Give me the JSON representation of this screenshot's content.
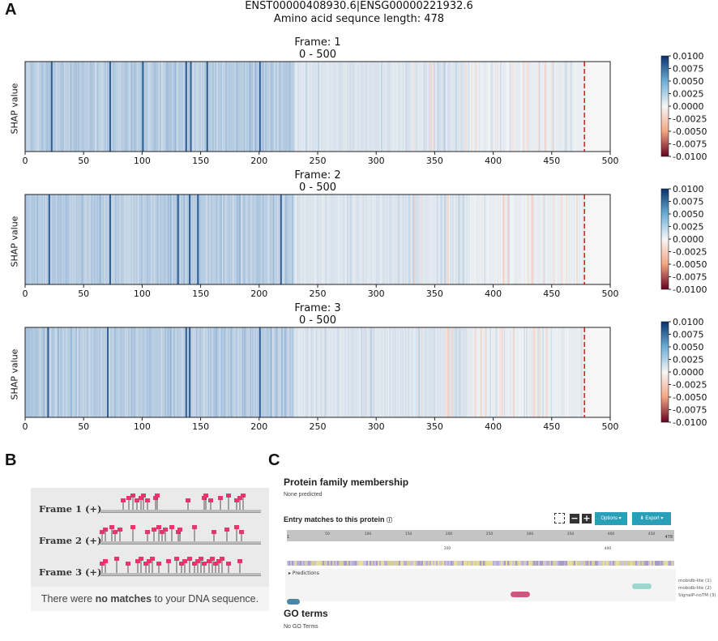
{
  "panel_labels": {
    "a": "A",
    "b": "B",
    "c": "C"
  },
  "header": {
    "line1": "ENST00000408930.6|ENSG00000221932.6",
    "line2": "Amino acid sequnce length: 478"
  },
  "chart_data": [
    {
      "type": "heatmap",
      "title": "Frame: 1",
      "subtitle": "0 - 500",
      "ylabel": "SHAP value",
      "xlim": [
        0,
        500
      ],
      "xticks": [
        0,
        50,
        100,
        150,
        200,
        250,
        300,
        350,
        400,
        450,
        500
      ],
      "colorbar": {
        "min": -0.01,
        "max": 0.01,
        "ticks": [
          "0.0100",
          "0.0075",
          "0.0050",
          "0.0025",
          "0.0000",
          "-0.0025",
          "-0.0050",
          "-0.0075",
          "-0.0100"
        ]
      },
      "sequence_length_marker": 478,
      "seed": 11,
      "peaks": [
        72,
        137,
        141,
        155,
        22,
        100,
        200
      ]
    },
    {
      "type": "heatmap",
      "title": "Frame: 2",
      "subtitle": "0 - 500",
      "ylabel": "SHAP value",
      "xlim": [
        0,
        500
      ],
      "xticks": [
        0,
        50,
        100,
        150,
        200,
        250,
        300,
        350,
        400,
        450,
        500
      ],
      "colorbar": {
        "min": -0.01,
        "max": 0.01,
        "ticks": [
          "0.0100",
          "0.0075",
          "0.0050",
          "0.0025",
          "0.0000",
          "-0.0025",
          "-0.0050",
          "-0.0075",
          "-0.0100"
        ]
      },
      "sequence_length_marker": 478,
      "seed": 23,
      "peaks": [
        20,
        72,
        130,
        140,
        147,
        218
      ]
    },
    {
      "type": "heatmap",
      "title": "Frame: 3",
      "subtitle": "0 - 500",
      "ylabel": "SHAP value",
      "xlim": [
        0,
        500
      ],
      "xticks": [
        0,
        50,
        100,
        150,
        200,
        250,
        300,
        350,
        400,
        450,
        500
      ],
      "colorbar": {
        "min": -0.01,
        "max": 0.01,
        "ticks": [
          "0.0100",
          "0.0075",
          "0.0050",
          "0.0025",
          "0.0000",
          "-0.0025",
          "-0.0050",
          "-0.0075",
          "-0.0100"
        ]
      },
      "sequence_length_marker": 478,
      "seed": 37,
      "peaks": [
        19,
        70,
        137,
        140,
        200
      ]
    }
  ],
  "panel_b": {
    "frames": [
      {
        "label": "Frame 1 (+)",
        "sites": [
          28,
          35,
          40,
          45,
          50,
          53,
          58,
          68,
          70,
          108,
          128,
          130,
          136,
          148,
          158,
          168,
          172,
          176
        ]
      },
      {
        "label": "Frame 2 (+)",
        "sites": [
          2,
          6,
          14,
          18,
          24,
          40,
          58,
          66,
          72,
          76,
          80,
          88,
          96,
          98,
          116,
          140,
          156,
          168,
          174
        ]
      },
      {
        "label": "Frame 3 (+)",
        "sites": [
          2,
          6,
          20,
          34,
          46,
          50,
          56,
          60,
          64,
          72,
          84,
          94,
          100,
          104,
          110,
          116,
          120,
          124,
          128,
          134,
          138,
          142,
          146,
          150,
          158,
          172
        ]
      }
    ],
    "footer_pre": "There were ",
    "footer_bold": "no matches",
    "footer_post": " to your DNA sequence."
  },
  "panel_c": {
    "family_heading": "Protein family membership",
    "family_value": "None predicted",
    "entry_heading": "Entry matches to this protein",
    "info_icon": "info-icon",
    "options_label": "Options ▾",
    "export_label": "⬇ Export ▾",
    "ruler_start": "1",
    "ruler_end": "478",
    "ruler_ticks": [
      "50",
      "100",
      "150",
      "200",
      "250",
      "300",
      "350",
      "400",
      "450"
    ],
    "ruler_sub_ticks": [
      "200",
      "400"
    ],
    "predictions_label": "▸ Predictions",
    "tracks": [
      {
        "label": "mobidb-lite (1)",
        "color": "#9ed6d0"
      },
      {
        "label": "mobidb-lite (2)",
        "color": "#d4527e"
      },
      {
        "label": "SignalP-noTM (3)",
        "color": "#4a86a8"
      }
    ],
    "go_heading": "GO terms",
    "go_value": "No GO Terms"
  }
}
